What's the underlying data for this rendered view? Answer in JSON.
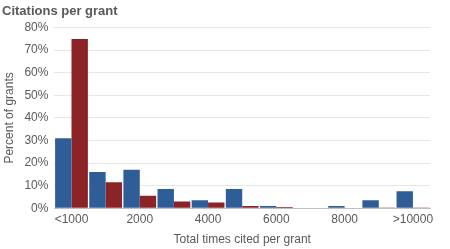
{
  "chart_data": {
    "type": "bar",
    "title": "Citations per grant",
    "x_label": "Total times cited per grant",
    "y_label": "Percent of grants",
    "categories": [
      "<1000",
      null,
      "2000",
      null,
      "4000",
      null,
      "6000",
      null,
      "8000",
      null,
      ">10000"
    ],
    "series": [
      {
        "color": "#2f5d97",
        "values": [
          31,
          16,
          17,
          8.5,
          3.5,
          8.5,
          1,
          0,
          1,
          3.5,
          7.5
        ]
      },
      {
        "color": "#8c2327",
        "values": [
          75,
          11.5,
          5.5,
          3,
          2.5,
          1,
          0.5,
          0,
          0,
          0.3,
          0.3
        ]
      }
    ],
    "ylim": [
      0,
      80
    ],
    "yticks": [
      {
        "value": 0,
        "label": "0%"
      },
      {
        "value": 10,
        "label": "10%"
      },
      {
        "value": 20,
        "label": "20%"
      },
      {
        "value": 30,
        "label": "30%"
      },
      {
        "value": 40,
        "label": "40%"
      },
      {
        "value": 50,
        "label": "50%"
      },
      {
        "value": 60,
        "label": "60%"
      },
      {
        "value": 70,
        "label": "70%"
      },
      {
        "value": 80,
        "label": "80%"
      }
    ],
    "grid": true
  }
}
